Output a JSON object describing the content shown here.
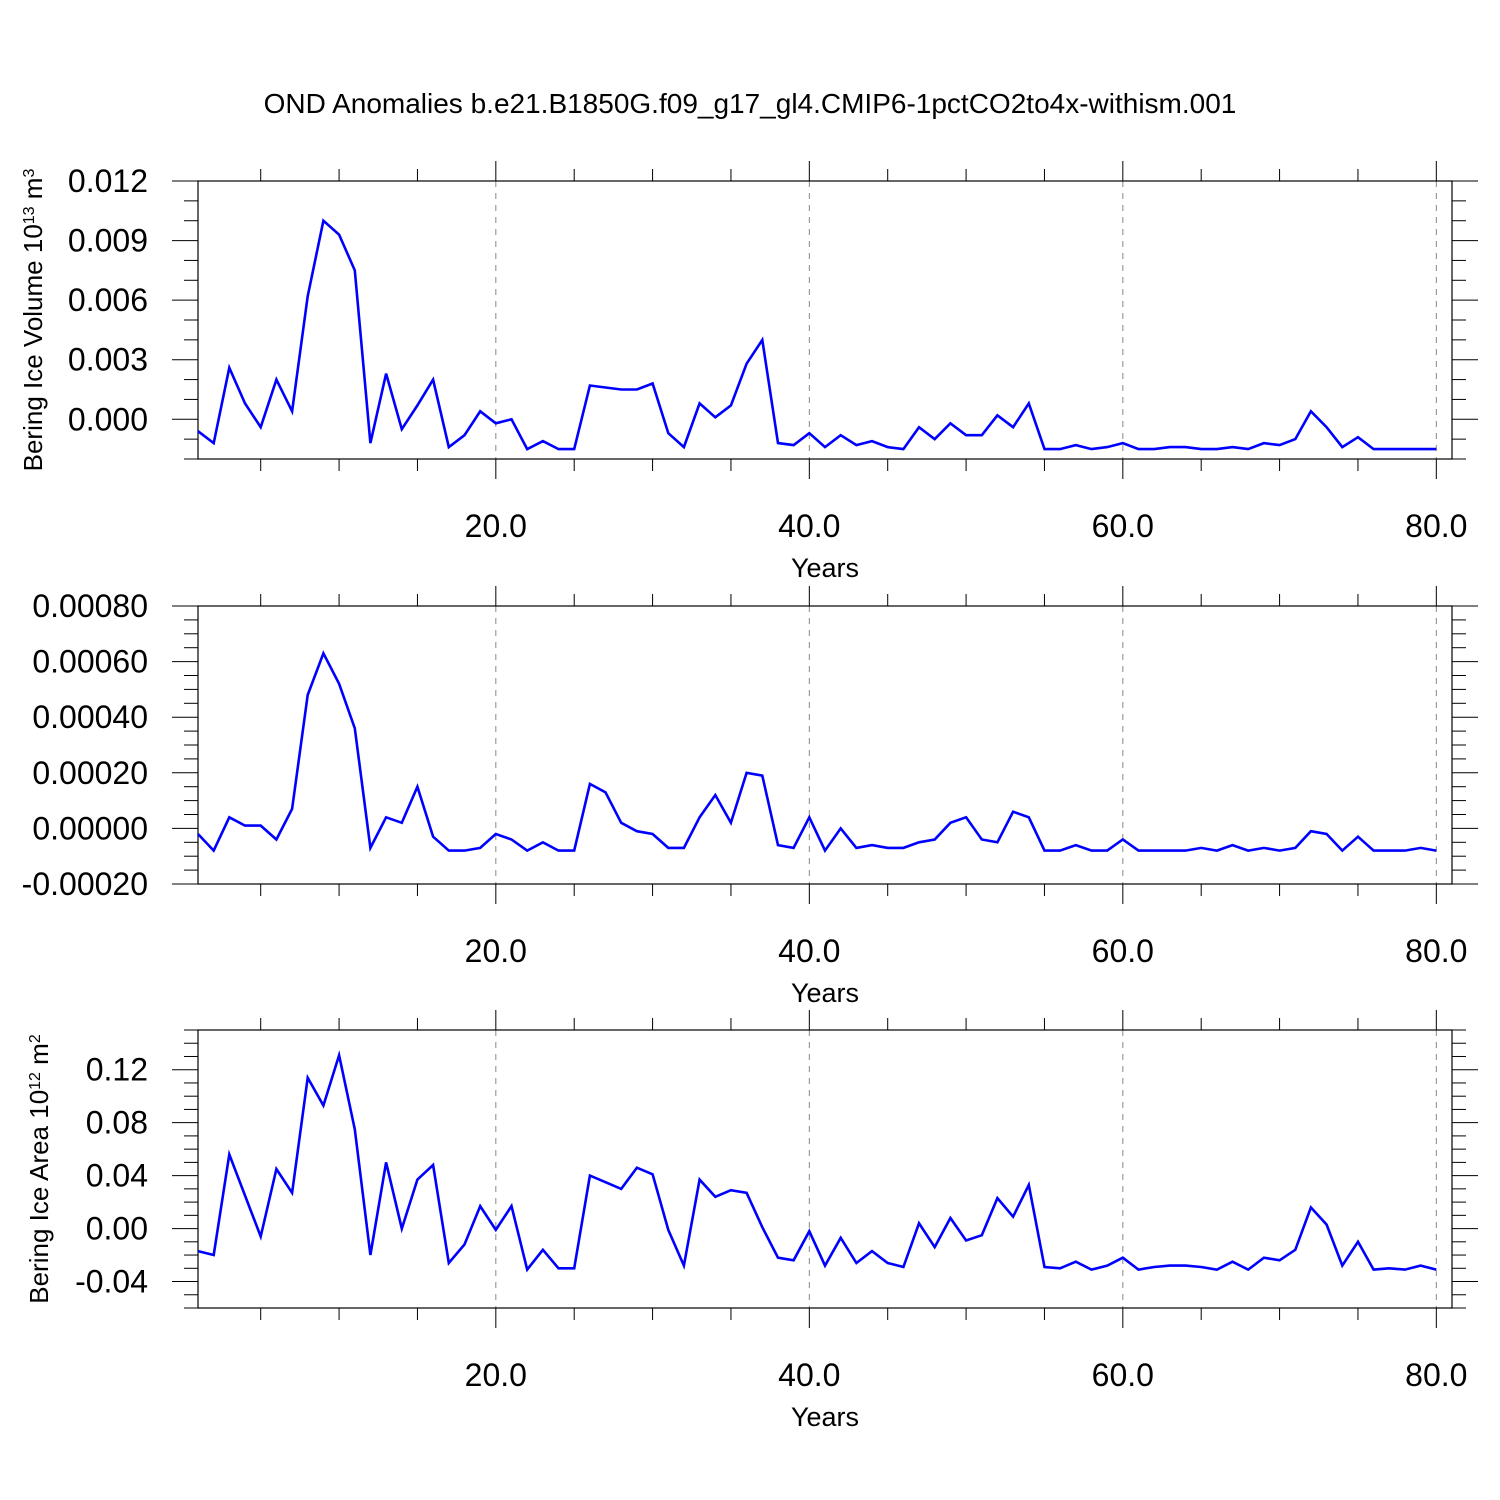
{
  "title": "OND Anomalies b.e21.B1850G.f09_g17_gl4.CMIP6-1pctCO2to4x-withism.001",
  "colors": {
    "line": "#0000ff",
    "axes": "#000000",
    "grid": "#888888"
  },
  "chart_data": [
    {
      "type": "line",
      "ylabel_parts": [
        "Bering Ice Volume 10",
        "13",
        " m",
        "3"
      ],
      "xlabel": "Years",
      "xlim": [
        1,
        81
      ],
      "ylim": [
        -0.002,
        0.012
      ],
      "x_ticks": [
        20,
        40,
        60,
        80
      ],
      "x_tick_labels": [
        "20.0",
        "40.0",
        "60.0",
        "80.0"
      ],
      "y_ticks": [
        0.0,
        0.003,
        0.006,
        0.009,
        0.012
      ],
      "y_tick_labels": [
        "0.000",
        "0.003",
        "0.006",
        "0.009",
        "0.012"
      ],
      "y_minor_step": 0.001,
      "grid": "vertical dashed at major x ticks",
      "series": [
        {
          "values": [
            -0.0006,
            -0.0012,
            0.0026,
            0.0008,
            -0.0004,
            0.002,
            0.0004,
            0.0062,
            0.01,
            0.0093,
            0.0075,
            -0.0012,
            0.0023,
            -0.0005,
            0.0007,
            0.002,
            -0.0014,
            -0.0008,
            0.0004,
            -0.0002,
            0.0,
            -0.0015,
            -0.0011,
            -0.0015,
            -0.0015,
            0.0017,
            0.0016,
            0.0015,
            0.0015,
            0.0018,
            -0.0007,
            -0.0014,
            0.0008,
            0.0001,
            0.0007,
            0.0028,
            0.004,
            -0.0012,
            -0.0013,
            -0.0007,
            -0.0014,
            -0.0008,
            -0.0013,
            -0.0011,
            -0.0014,
            -0.0015,
            -0.0004,
            -0.001,
            -0.0002,
            -0.0008,
            -0.0008,
            0.0002,
            -0.0004,
            0.0008,
            -0.0015,
            -0.0015,
            -0.0013,
            -0.0015,
            -0.0014,
            -0.0012,
            -0.0015,
            -0.0015,
            -0.0014,
            -0.0014,
            -0.0015,
            -0.0015,
            -0.0014,
            -0.0015,
            -0.0012,
            -0.0013,
            -0.001,
            0.0004,
            -0.0004,
            -0.0014,
            -0.0009,
            -0.0015,
            -0.0015,
            -0.0015,
            -0.0015,
            -0.0015
          ]
        }
      ]
    },
    {
      "type": "line",
      "ylabel_parts": [],
      "xlabel": "Years",
      "xlim": [
        1,
        81
      ],
      "ylim": [
        -0.0002,
        0.0008
      ],
      "x_ticks": [
        20,
        40,
        60,
        80
      ],
      "x_tick_labels": [
        "20.0",
        "40.0",
        "60.0",
        "80.0"
      ],
      "y_ticks": [
        -0.0002,
        0.0,
        0.0002,
        0.0004,
        0.0006,
        0.0008
      ],
      "y_tick_labels": [
        "-0.00020",
        "0.00000",
        "0.00020",
        "0.00040",
        "0.00060",
        "0.00080"
      ],
      "y_minor_step": 5e-05,
      "grid": "vertical dashed at major x ticks",
      "series": [
        {
          "values": [
            -2e-05,
            -8e-05,
            4e-05,
            1e-05,
            1e-05,
            -4e-05,
            7e-05,
            0.00048,
            0.00063,
            0.00052,
            0.00036,
            -7e-05,
            4e-05,
            2e-05,
            0.00015,
            -3e-05,
            -8e-05,
            -8e-05,
            -7e-05,
            -2e-05,
            -4e-05,
            -8e-05,
            -5e-05,
            -8e-05,
            -8e-05,
            0.00016,
            0.00013,
            2e-05,
            -1e-05,
            -2e-05,
            -7e-05,
            -7e-05,
            4e-05,
            0.00012,
            2e-05,
            0.0002,
            0.00019,
            -6e-05,
            -7e-05,
            4e-05,
            -8e-05,
            0.0,
            -7e-05,
            -6e-05,
            -7e-05,
            -7e-05,
            -5e-05,
            -4e-05,
            2e-05,
            4e-05,
            -4e-05,
            -5e-05,
            6e-05,
            4e-05,
            -8e-05,
            -8e-05,
            -6e-05,
            -8e-05,
            -8e-05,
            -4e-05,
            -8e-05,
            -8e-05,
            -8e-05,
            -8e-05,
            -7e-05,
            -8e-05,
            -6e-05,
            -8e-05,
            -7e-05,
            -8e-05,
            -7e-05,
            -1e-05,
            -2e-05,
            -8e-05,
            -3e-05,
            -8e-05,
            -8e-05,
            -8e-05,
            -7e-05,
            -8e-05
          ]
        }
      ]
    },
    {
      "type": "line",
      "ylabel_parts": [
        "Bering Ice Area 10",
        "12",
        " m",
        "2"
      ],
      "xlabel": "Years",
      "xlim": [
        1,
        81
      ],
      "ylim": [
        -0.06,
        0.15
      ],
      "x_ticks": [
        20,
        40,
        60,
        80
      ],
      "x_tick_labels": [
        "20.0",
        "40.0",
        "60.0",
        "80.0"
      ],
      "y_ticks": [
        -0.04,
        0.0,
        0.04,
        0.08,
        0.12
      ],
      "y_tick_labels": [
        "-0.04",
        "0.00",
        "0.04",
        "0.08",
        "0.12"
      ],
      "y_minor_step": 0.01,
      "grid": "vertical dashed at major x ticks",
      "series": [
        {
          "values": [
            -0.017,
            -0.02,
            0.056,
            0.025,
            -0.006,
            0.045,
            0.027,
            0.114,
            0.093,
            0.131,
            0.075,
            -0.02,
            0.05,
            0.0,
            0.037,
            0.048,
            -0.026,
            -0.012,
            0.017,
            -0.001,
            0.017,
            -0.031,
            -0.016,
            -0.03,
            -0.03,
            0.04,
            0.035,
            0.03,
            0.046,
            0.041,
            -0.001,
            -0.028,
            0.037,
            0.024,
            0.029,
            0.027,
            0.001,
            -0.022,
            -0.024,
            -0.002,
            -0.028,
            -0.007,
            -0.026,
            -0.017,
            -0.026,
            -0.029,
            0.004,
            -0.014,
            0.008,
            -0.009,
            -0.005,
            0.023,
            0.009,
            0.033,
            -0.029,
            -0.03,
            -0.025,
            -0.031,
            -0.028,
            -0.022,
            -0.031,
            -0.029,
            -0.028,
            -0.028,
            -0.029,
            -0.031,
            -0.025,
            -0.031,
            -0.022,
            -0.024,
            -0.016,
            0.016,
            0.003,
            -0.028,
            -0.01,
            -0.031,
            -0.03,
            -0.031,
            -0.028,
            -0.031
          ]
        }
      ]
    }
  ]
}
